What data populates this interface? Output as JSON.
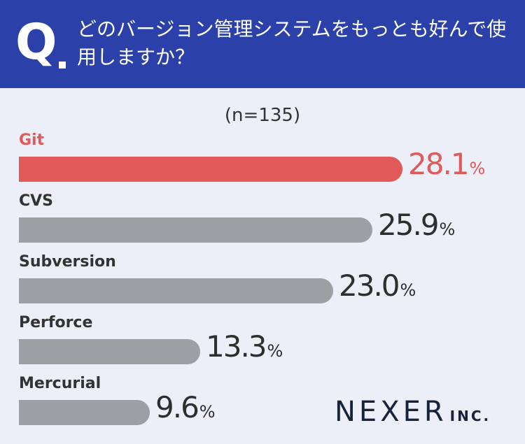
{
  "header": {
    "q_mark": "Q",
    "question": "どのバージョン管理システムをもっとも好んで使用しますか？"
  },
  "sample_size": "(n=135)",
  "chart_data": {
    "type": "bar",
    "orientation": "horizontal",
    "categories": [
      "Git",
      "CVS",
      "Subversion",
      "Perforce",
      "Mercurial"
    ],
    "values": [
      28.1,
      25.9,
      23.0,
      13.3,
      9.6
    ],
    "value_labels": [
      "28.1",
      "25.9",
      "23.0",
      "13.3",
      "9.6"
    ],
    "unit": "%",
    "highlight_index": 0,
    "colors": {
      "highlight": "#e05a5a",
      "default": "#9d9fa4",
      "text": "#333333"
    },
    "xlim": [
      0,
      30
    ],
    "grid": false,
    "legend": "none"
  },
  "logo": {
    "main": "NEXER",
    "sub": "INC."
  },
  "colors": {
    "header_bg": "#2b40a8",
    "page_bg": "#eceef8",
    "logo": "#17223b"
  }
}
